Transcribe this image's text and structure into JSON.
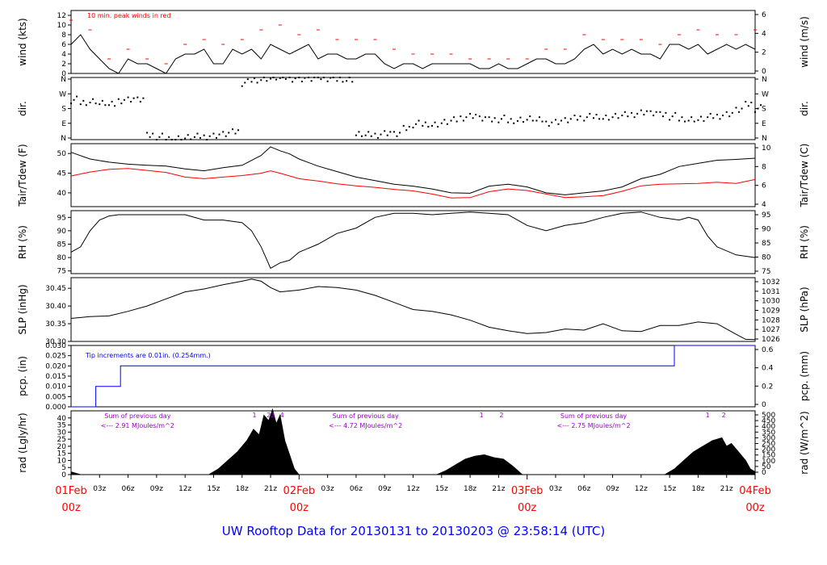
{
  "page_title": "UW Rooftop Data for 20130131  to  20130203 @ 23:58:14  (UTC)",
  "colors": {
    "red": "#ff0000",
    "blue": "#0000ff",
    "purple": "#9900cc",
    "title": "#0000ff",
    "black": "#000000"
  },
  "x_axis": {
    "hour_ticks": [
      "03z",
      "06z",
      "09z",
      "12z",
      "15z",
      "18z",
      "21z",
      "03z",
      "06z",
      "09z",
      "12z",
      "15z",
      "18z",
      "21z",
      "03z",
      "06z",
      "09z",
      "12z",
      "15z",
      "18z",
      "21z"
    ],
    "day_labels": [
      {
        "date": "01Feb",
        "hour": "00z"
      },
      {
        "date": "02Feb",
        "hour": "00z"
      },
      {
        "date": "03Feb",
        "hour": "00z"
      },
      {
        "date": "04Feb",
        "hour": "00z"
      }
    ]
  },
  "chart_data": [
    {
      "type": "line",
      "id": "wind",
      "ylabel_left": "wind (kts)",
      "ylabel_right": "wind (m/s)",
      "yticks_left": [
        "0",
        "2",
        "4",
        "6",
        "8",
        "10",
        "12"
      ],
      "yticks_right": [
        "0",
        "2",
        "4",
        "6"
      ],
      "ylim": [
        0,
        13
      ],
      "annotation": "10 min. peak winds in red",
      "series": [
        {
          "name": "wind",
          "color": "#000000",
          "x": [
            0,
            1,
            2,
            3,
            4,
            5,
            6,
            7,
            8,
            9,
            10,
            11,
            12,
            13,
            14,
            15,
            16,
            17,
            18,
            19,
            20,
            21,
            22,
            23,
            24,
            25,
            26,
            27,
            28,
            29,
            30,
            31,
            32,
            33,
            34,
            35,
            36,
            37,
            38,
            39,
            40,
            41,
            42,
            43,
            44,
            45,
            46,
            47,
            48,
            49,
            50,
            51,
            52,
            53,
            54,
            55,
            56,
            57,
            58,
            59,
            60,
            61,
            62,
            63,
            64,
            65,
            66,
            67,
            68,
            69,
            70,
            71,
            72
          ],
          "y": [
            6,
            8,
            5,
            3,
            1,
            0,
            3,
            2,
            2,
            1,
            0,
            3,
            4,
            4,
            5,
            2,
            2,
            5,
            4,
            5,
            3,
            6,
            5,
            4,
            5,
            6,
            3,
            4,
            4,
            3,
            3,
            4,
            4,
            2,
            1,
            2,
            2,
            1,
            2,
            2,
            2,
            2,
            2,
            1,
            1,
            2,
            1,
            1,
            2,
            3,
            3,
            2,
            2,
            3,
            5,
            6,
            4,
            5,
            4,
            5,
            4,
            4,
            3,
            6,
            6,
            5,
            6,
            4,
            5,
            6,
            5,
            6,
            5
          ]
        },
        {
          "name": "10 min. peak winds",
          "color": "#ff0000",
          "x": [
            0,
            2,
            4,
            6,
            8,
            10,
            12,
            14,
            16,
            18,
            20,
            22,
            24,
            26,
            28,
            30,
            32,
            34,
            36,
            38,
            40,
            42,
            44,
            46,
            48,
            50,
            52,
            54,
            56,
            58,
            60,
            62,
            64,
            66,
            68,
            70,
            72
          ],
          "y": [
            11,
            9,
            3,
            5,
            3,
            2,
            6,
            7,
            6,
            7,
            9,
            10,
            8,
            9,
            7,
            7,
            7,
            5,
            4,
            4,
            4,
            3,
            3,
            3,
            3,
            5,
            5,
            8,
            7,
            7,
            7,
            6,
            8,
            9,
            8,
            8,
            9
          ]
        }
      ]
    },
    {
      "type": "scatter",
      "id": "dir",
      "ylabel_left": "dir.",
      "ylabel_right": "dir.",
      "yticks_left": [
        "N",
        "E",
        "S",
        "W",
        "N"
      ],
      "yticks_right": [
        "N",
        "E",
        "S",
        "W",
        "N"
      ],
      "ylim": [
        0,
        360
      ],
      "series": [
        {
          "name": "direction",
          "color": "#000000",
          "x": [
            0,
            1,
            2,
            3,
            4,
            5,
            6,
            7,
            8,
            9,
            10,
            11,
            12,
            13,
            14,
            15,
            16,
            17,
            18,
            19,
            20,
            21,
            22,
            23,
            24,
            25,
            26,
            27,
            28,
            29,
            30,
            31,
            32,
            33,
            34,
            35,
            36,
            37,
            38,
            39,
            40,
            41,
            42,
            43,
            44,
            45,
            46,
            47,
            48,
            49,
            50,
            51,
            52,
            53,
            54,
            55,
            56,
            57,
            58,
            59,
            60,
            61,
            62,
            63,
            64,
            65,
            66,
            67,
            68,
            69,
            70,
            71,
            72
          ],
          "y": [
            230,
            220,
            225,
            210,
            200,
            230,
            235,
            230,
            20,
            15,
            10,
            10,
            12,
            15,
            20,
            25,
            30,
            40,
            330,
            350,
            355,
            358,
            356,
            355,
            352,
            350,
            355,
            358,
            355,
            350,
            30,
            25,
            30,
            40,
            30,
            60,
            90,
            95,
            90,
            100,
            110,
            130,
            140,
            120,
            110,
            120,
            115,
            118,
            120,
            110,
            100,
            105,
            110,
            120,
            130,
            140,
            130,
            135,
            140,
            150,
            160,
            150,
            140,
            135,
            125,
            120,
            118,
            130,
            140,
            150,
            170,
            200,
            180
          ]
        }
      ]
    },
    {
      "type": "line",
      "id": "temp",
      "ylabel_left": "Tair/Tdew (F)",
      "ylabel_right": "Tair/Tdew (C)",
      "yticks_left": [
        "40",
        "45",
        "50"
      ],
      "yticks_right": [
        "4",
        "6",
        "8",
        "10"
      ],
      "ylim": [
        36.5,
        52.5
      ],
      "series": [
        {
          "name": "Tair",
          "color": "#000000",
          "x": [
            0,
            2,
            4,
            6,
            8,
            10,
            12,
            14,
            16,
            18,
            20,
            21,
            22,
            23,
            24,
            26,
            28,
            30,
            32,
            34,
            36,
            38,
            40,
            42,
            44,
            46,
            48,
            50,
            52,
            54,
            56,
            58,
            60,
            62,
            64,
            66,
            68,
            70,
            72
          ],
          "y": [
            50.3,
            48.6,
            47.8,
            47.3,
            47.0,
            46.8,
            46.1,
            45.6,
            46.4,
            47.0,
            49.5,
            51.7,
            50.7,
            49.9,
            48.6,
            46.8,
            45.4,
            44.0,
            43.1,
            42.2,
            41.7,
            41.0,
            40.0,
            39.9,
            41.7,
            42.2,
            41.5,
            40.0,
            39.5,
            40.0,
            40.5,
            41.5,
            43.6,
            44.7,
            46.7,
            47.5,
            48.3,
            48.5,
            48.8
          ]
        },
        {
          "name": "Tdew",
          "color": "#ff0000",
          "x": [
            0,
            2,
            4,
            6,
            8,
            10,
            12,
            14,
            16,
            18,
            20,
            21,
            22,
            23,
            24,
            26,
            28,
            30,
            32,
            34,
            36,
            38,
            40,
            42,
            44,
            46,
            48,
            50,
            52,
            54,
            56,
            58,
            60,
            62,
            64,
            66,
            68,
            70,
            72
          ],
          "y": [
            44.3,
            45.3,
            46.0,
            46.2,
            45.7,
            45.2,
            44.0,
            43.6,
            44.0,
            44.4,
            45.0,
            45.6,
            45.0,
            44.3,
            43.6,
            43.0,
            42.3,
            41.8,
            41.4,
            40.9,
            40.5,
            39.7,
            38.7,
            38.8,
            40.3,
            41.0,
            40.6,
            39.7,
            38.8,
            39.0,
            39.3,
            40.4,
            41.8,
            42.2,
            42.3,
            42.4,
            42.7,
            42.4,
            43.4
          ]
        }
      ]
    },
    {
      "type": "line",
      "id": "rh",
      "ylabel_left": "RH (%)",
      "ylabel_right": "RH (%)",
      "yticks_left": [
        "75",
        "80",
        "85",
        "90",
        "95"
      ],
      "yticks_right": [
        "75",
        "80",
        "85",
        "90",
        "95"
      ],
      "ylim": [
        74,
        97.5
      ],
      "series": [
        {
          "name": "RH",
          "color": "#000000",
          "x": [
            0,
            1,
            2,
            3,
            4,
            5,
            6,
            8,
            10,
            12,
            14,
            16,
            18,
            19,
            20,
            20.5,
            21,
            22,
            23,
            24,
            26,
            28,
            30,
            32,
            34,
            36,
            38,
            40,
            42,
            44,
            46,
            48,
            50,
            52,
            54,
            56,
            58,
            60,
            62,
            64,
            65,
            66,
            67,
            68,
            70,
            72
          ],
          "y": [
            82,
            84,
            90,
            94,
            95.5,
            96,
            96,
            96,
            96,
            96,
            94,
            94,
            93,
            90,
            84,
            80,
            76,
            78,
            79,
            82,
            85,
            89,
            91,
            95,
            96.5,
            96.5,
            96,
            96.5,
            97,
            96.5,
            96,
            92,
            90,
            92,
            93,
            95,
            96.5,
            97,
            95,
            94,
            95,
            94,
            88,
            84,
            81,
            80
          ]
        }
      ]
    },
    {
      "type": "line",
      "id": "slp",
      "ylabel_left": "SLP (inHg)",
      "ylabel_right": "SLP (hPa)",
      "yticks_left": [
        "30.30",
        "30.35",
        "30.40",
        "30.45"
      ],
      "yticks_right": [
        "1026",
        "1027",
        "1028",
        "1029",
        "1030",
        "1031",
        "1032"
      ],
      "ylim": [
        30.3,
        30.48
      ],
      "series": [
        {
          "name": "SLP",
          "color": "#000000",
          "x": [
            0,
            2,
            4,
            6,
            8,
            10,
            12,
            14,
            16,
            18,
            19,
            20,
            21,
            22,
            24,
            26,
            28,
            30,
            32,
            34,
            36,
            38,
            40,
            42,
            44,
            46,
            48,
            50,
            52,
            54,
            56,
            58,
            60,
            62,
            64,
            66,
            68,
            70,
            71,
            72
          ],
          "y": [
            30.365,
            30.37,
            30.372,
            30.385,
            30.4,
            30.42,
            30.44,
            30.448,
            30.46,
            30.47,
            30.476,
            30.47,
            30.452,
            30.44,
            30.445,
            30.455,
            30.452,
            30.445,
            30.43,
            30.41,
            30.39,
            30.385,
            30.375,
            30.36,
            30.34,
            30.33,
            30.322,
            30.325,
            30.335,
            30.332,
            30.35,
            30.33,
            30.328,
            30.345,
            30.345,
            30.355,
            30.35,
            30.32,
            30.306,
            30.305
          ]
        }
      ]
    },
    {
      "type": "line",
      "id": "pcp",
      "ylabel_left": "pcp. (in)",
      "ylabel_right": "pcp. (mm)",
      "yticks_left": [
        "0.000",
        "0.005",
        "0.010",
        "0.015",
        "0.020",
        "0.025",
        "0.030"
      ],
      "yticks_right": [
        "0",
        "0.2",
        "0.4",
        "0.6"
      ],
      "ylim": [
        0,
        0.03
      ],
      "annotation": "Tip increments are 0.01in. (0.254mm.)",
      "series": [
        {
          "name": "pcp",
          "color": "#0000ff",
          "x": [
            0,
            2.6,
            2.6,
            5.2,
            5.2,
            63.5,
            63.5,
            72
          ],
          "y": [
            0,
            0,
            0.01,
            0.01,
            0.02,
            0.02,
            0.03,
            0.03
          ]
        }
      ]
    },
    {
      "type": "area",
      "id": "rad",
      "ylabel_left": "rad (Lgly/hr)",
      "ylabel_right": "rad (W/m^2)",
      "yticks_left": [
        "0",
        "5",
        "10",
        "15",
        "20",
        "25",
        "30",
        "35",
        "40"
      ],
      "yticks_right": [
        "0",
        "50",
        "100",
        "150",
        "200",
        "250",
        "300",
        "350",
        "400",
        "450",
        "500"
      ],
      "ylim": [
        0,
        45
      ],
      "day_notes": [
        {
          "title": "Sum of previous day",
          "value": "<--- 2.91 MJoules/m^2",
          "x": 7
        },
        {
          "title": "Sum of previous day",
          "value": "<--- 4.72 MJoules/m^2",
          "x": 31
        },
        {
          "title": "Sum of previous day",
          "value": "<--- 2.75 MJoules/m^2",
          "x": 55
        }
      ],
      "markers": [
        {
          "label": "1",
          "x": 19.3
        },
        {
          "label": "2",
          "x": 20.8
        },
        {
          "label": "3",
          "x": 21.2
        },
        {
          "label": "4",
          "x": 22.2
        },
        {
          "label": "1",
          "x": 43.2
        },
        {
          "label": "2",
          "x": 45.3
        },
        {
          "label": "1",
          "x": 67.0
        },
        {
          "label": "2",
          "x": 68.7
        }
      ],
      "series": [
        {
          "name": "radiation",
          "color": "#000000",
          "x": [
            0,
            0.5,
            1,
            14.5,
            15.5,
            16.5,
            17.5,
            18.5,
            19.2,
            19.8,
            20.3,
            20.8,
            21.2,
            21.6,
            22,
            22.5,
            23,
            23.5,
            24,
            38.5,
            39.5,
            40.5,
            41.5,
            42.5,
            43.5,
            44.5,
            45.5,
            46.5,
            47.5,
            62.5,
            63.5,
            64.5,
            65.5,
            66.5,
            67.5,
            68.5,
            69,
            69.5,
            70.5,
            71,
            71.5,
            72
          ],
          "y": [
            2,
            1,
            0,
            0,
            4,
            10,
            16,
            24,
            32,
            28,
            42,
            38,
            46,
            36,
            42,
            24,
            14,
            4,
            0,
            0,
            3,
            7,
            11,
            13,
            14,
            12,
            11,
            6,
            0,
            0,
            4,
            10,
            16,
            20,
            24,
            26,
            20,
            22,
            14,
            10,
            4,
            2
          ]
        }
      ]
    }
  ]
}
